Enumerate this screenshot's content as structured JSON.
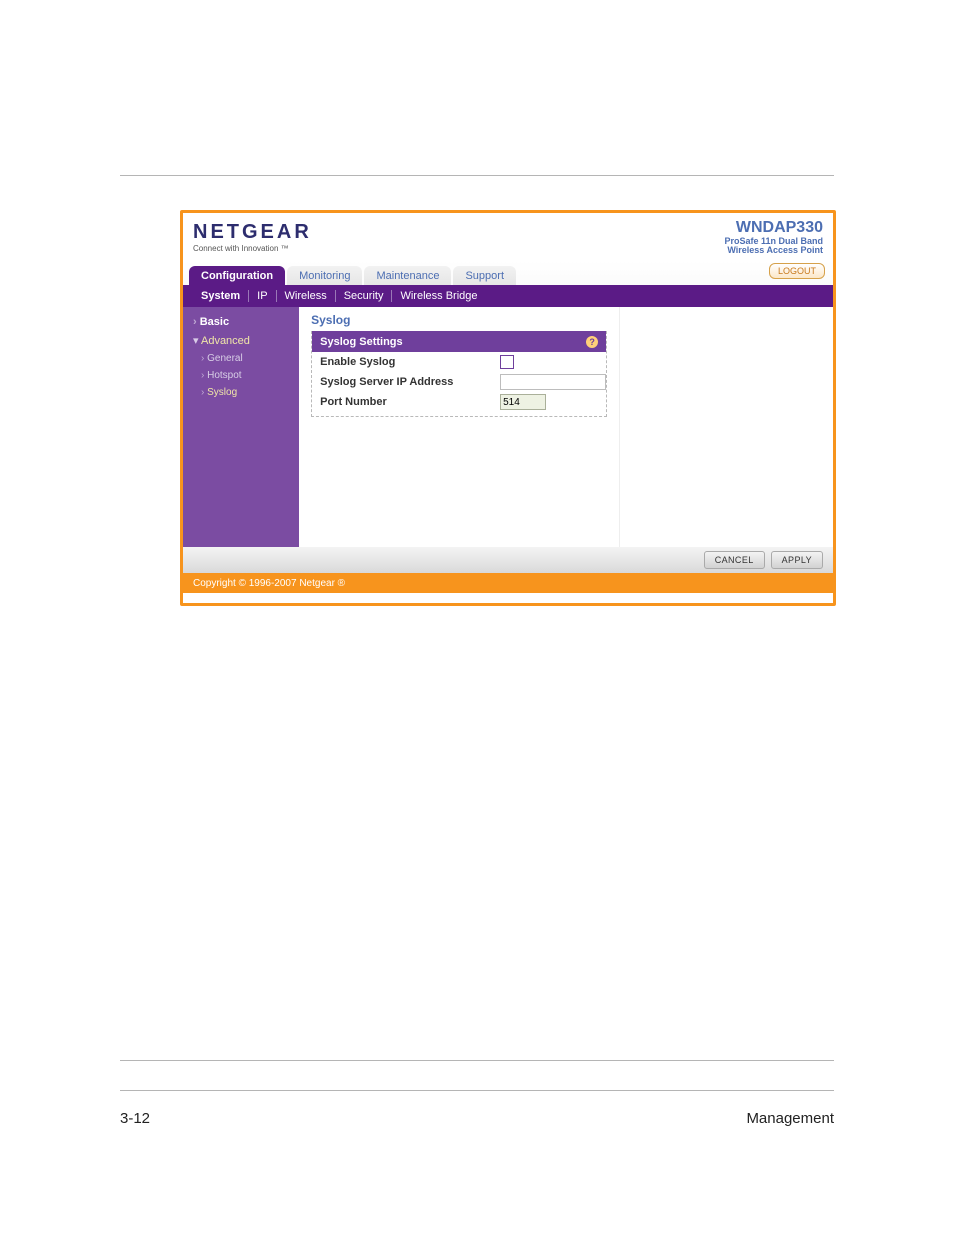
{
  "brand": {
    "logo": "NETGEAR",
    "tag": "Connect with Innovation ™"
  },
  "device": {
    "name": "WNDAP330",
    "line1": "ProSafe 11n Dual Band",
    "line2": "Wireless Access Point"
  },
  "tabs": {
    "configuration": "Configuration",
    "monitoring": "Monitoring",
    "maintenance": "Maintenance",
    "support": "Support"
  },
  "logout": "LOGOUT",
  "subnav": {
    "system": "System",
    "ip": "IP",
    "wireless": "Wireless",
    "security": "Security",
    "bridge": "Wireless Bridge"
  },
  "sidebar": {
    "basic": "Basic",
    "advanced": "Advanced",
    "general": "General",
    "hotspot": "Hotspot",
    "syslog": "Syslog"
  },
  "content": {
    "title": "Syslog",
    "panel_title": "Syslog Settings",
    "help": "?",
    "enable_label": "Enable Syslog",
    "server_label": "Syslog Server IP Address",
    "port_label": "Port Number",
    "port_value": "514"
  },
  "buttons": {
    "cancel": "CANCEL",
    "apply": "APPLY"
  },
  "copyright": "Copyright © 1996-2007 Netgear ®",
  "colors": {
    "orange": "#f7941d",
    "purple": "#5b1b86",
    "purple2": "#7b4ca2",
    "panel": "#6f3f9c",
    "link": "#4c6eb2"
  },
  "footer": {
    "left": "3-12",
    "right": "Management"
  }
}
